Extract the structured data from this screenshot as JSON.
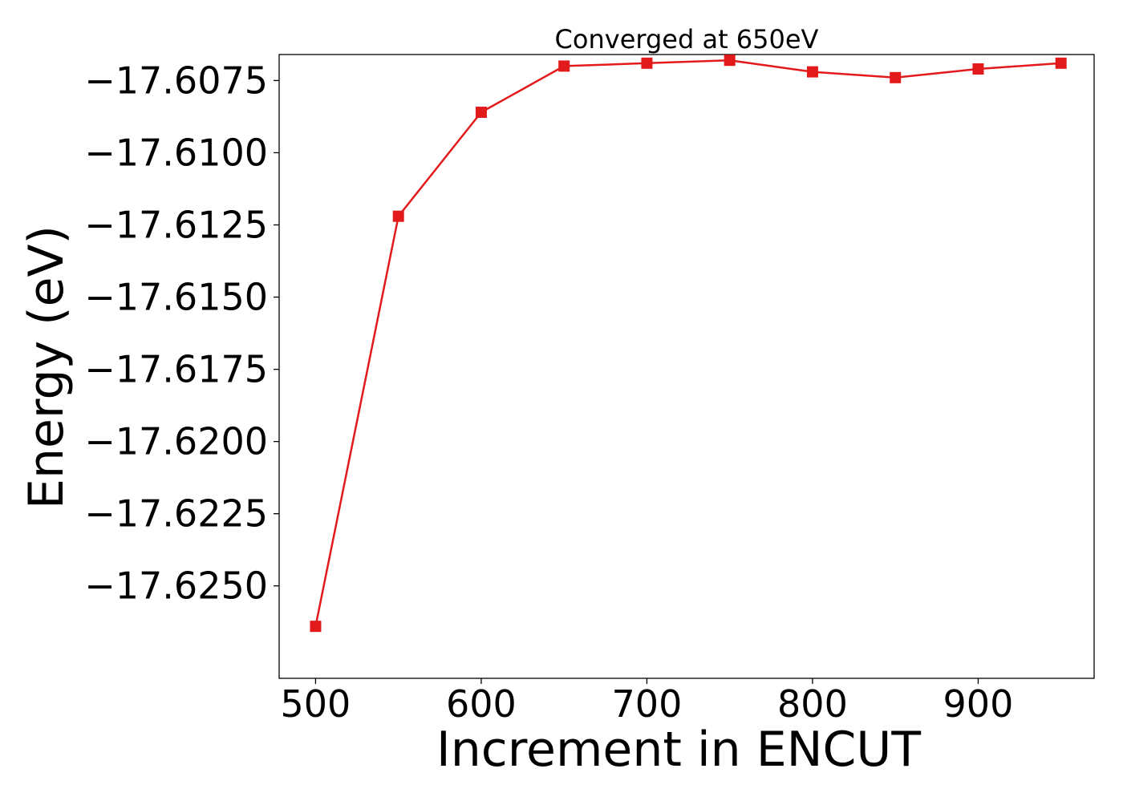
{
  "chart_data": {
    "type": "line",
    "title": "Converged at 650eV",
    "xlabel": "Increment in ENCUT",
    "ylabel": "Energy (eV)",
    "xlim": [
      478,
      970
    ],
    "ylim": [
      -17.6282,
      -17.6066
    ],
    "x_ticks": [
      500,
      600,
      700,
      800,
      900
    ],
    "x_tick_labels": [
      "500",
      "600",
      "700",
      "800",
      "900"
    ],
    "y_ticks": [
      -17.625,
      -17.6225,
      -17.62,
      -17.6175,
      -17.615,
      -17.6125,
      -17.61,
      -17.6075
    ],
    "y_tick_labels": [
      "−17.6250",
      "−17.6225",
      "−17.6200",
      "−17.6175",
      "−17.6150",
      "−17.6125",
      "−17.6100",
      "−17.6075"
    ],
    "grid": false,
    "legend": "none",
    "series": [
      {
        "color": "#e31a1c",
        "marker": "square",
        "x": [
          500,
          550,
          600,
          650,
          700,
          750,
          800,
          850,
          900,
          950
        ],
        "y": [
          -17.6264,
          -17.6122,
          -17.6086,
          -17.607,
          -17.6069,
          -17.6068,
          -17.6072,
          -17.6074,
          -17.6071,
          -17.6069
        ]
      }
    ]
  }
}
